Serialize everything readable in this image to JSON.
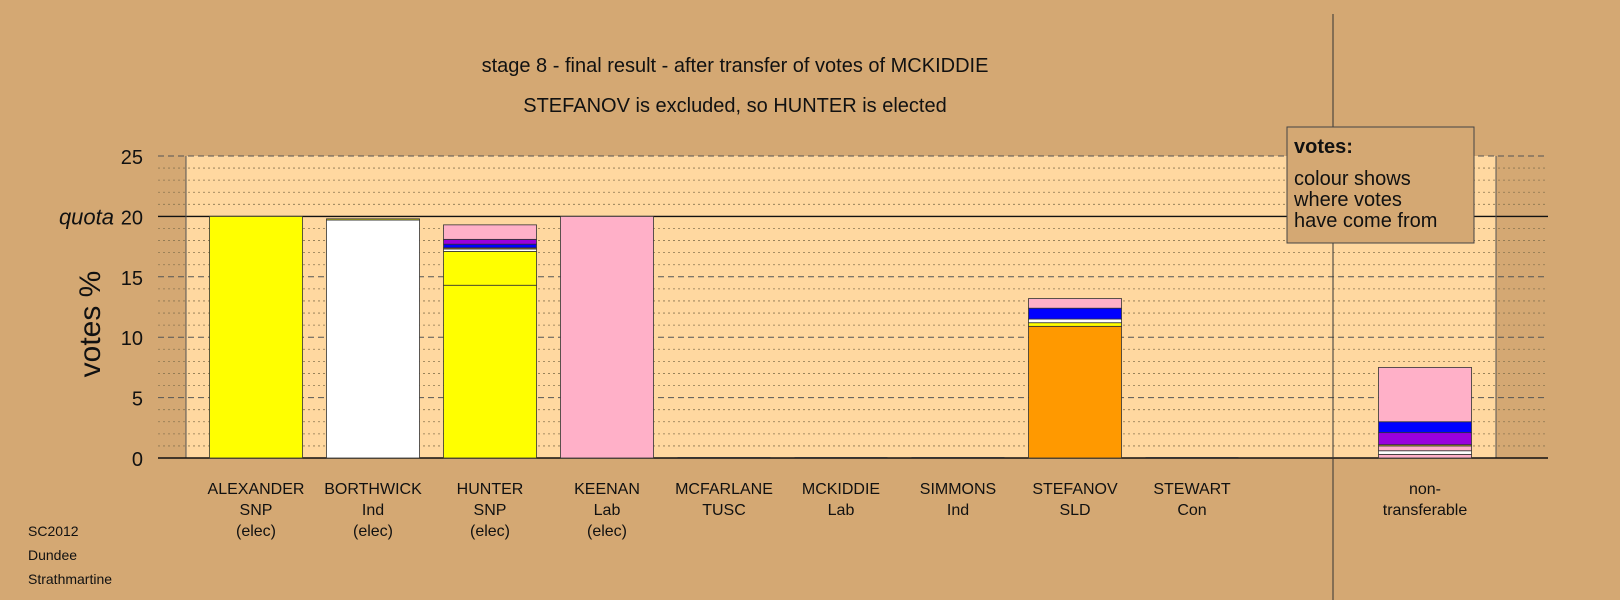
{
  "chart_data": {
    "type": "bar",
    "stacked": true,
    "title": "stage 8 - final result - after transfer of votes of MCKIDDIE",
    "subtitle": "STEFANOV is excluded, so HUNTER is elected",
    "ylabel": "votes %",
    "ylim": [
      0,
      25
    ],
    "yticks": [
      "0",
      "5",
      "10",
      "15",
      "20",
      "25"
    ],
    "quota": {
      "label": "quota",
      "value": 20
    },
    "grid": true,
    "categories": [
      {
        "name": "ALEXANDER",
        "party": "SNP",
        "note": "(elec)"
      },
      {
        "name": "BORTHWICK",
        "party": "Ind",
        "note": "(elec)"
      },
      {
        "name": "HUNTER",
        "party": "SNP",
        "note": "(elec)"
      },
      {
        "name": "KEENAN",
        "party": "Lab",
        "note": "(elec)"
      },
      {
        "name": "MCFARLANE",
        "party": "TUSC",
        "note": ""
      },
      {
        "name": "MCKIDDIE",
        "party": "Lab",
        "note": ""
      },
      {
        "name": "SIMMONS",
        "party": "Ind",
        "note": ""
      },
      {
        "name": "STEFANOV",
        "party": "SLD",
        "note": ""
      },
      {
        "name": "STEWART",
        "party": "Con",
        "note": ""
      },
      {
        "name": "non-",
        "party": "transferable",
        "note": ""
      }
    ],
    "stacks": [
      [
        {
          "value": 20.0,
          "color": "#ffff00"
        }
      ],
      [
        {
          "value": 19.7,
          "color": "#ffffff"
        },
        {
          "value": 0.1,
          "color": "#ffff00"
        }
      ],
      [
        {
          "value": 14.3,
          "color": "#ffff00"
        },
        {
          "value": 2.8,
          "color": "#ffff00"
        },
        {
          "value": 0.2,
          "color": "#ffffff"
        },
        {
          "value": 0.1,
          "color": "#ff9900"
        },
        {
          "value": 0.3,
          "color": "#0000ff"
        },
        {
          "value": 0.4,
          "color": "#9900dd"
        },
        {
          "value": 1.2,
          "color": "#ffb0c8"
        }
      ],
      [
        {
          "value": 20.0,
          "color": "#ffb0c8"
        }
      ],
      [],
      [],
      [],
      [
        {
          "value": 10.9,
          "color": "#ff9900"
        },
        {
          "value": 0.3,
          "color": "#ffff00"
        },
        {
          "value": 0.3,
          "color": "#ffffff"
        },
        {
          "value": 0.9,
          "color": "#0000ff"
        },
        {
          "value": 0.8,
          "color": "#ffb0c8"
        }
      ],
      [],
      [
        {
          "value": 0.3,
          "color": "#ffb0c8"
        },
        {
          "value": 0.3,
          "color": "#ffffff"
        },
        {
          "value": 0.4,
          "color": "#ffb0c8"
        },
        {
          "value": 0.1,
          "color": "#ffff00"
        },
        {
          "value": 1.0,
          "color": "#9900dd"
        },
        {
          "value": 0.9,
          "color": "#0000ff"
        },
        {
          "value": 4.5,
          "color": "#ffb0c8"
        }
      ]
    ],
    "legend": {
      "title": "votes:",
      "lines": [
        "colour shows",
        "where votes",
        "have come from"
      ],
      "placement": "top-right"
    },
    "colors": {
      "background": "#d4a873",
      "plot_area": "#ffd8a0",
      "snp": "#ffff00",
      "ind": "#ffffff",
      "lab": "#ffb0c8",
      "sld": "#ff9900",
      "tusc": "#9900dd",
      "con": "#0000ff"
    }
  },
  "footer": {
    "lines": [
      "SC2012",
      "Dundee",
      "Strathmartine"
    ]
  }
}
